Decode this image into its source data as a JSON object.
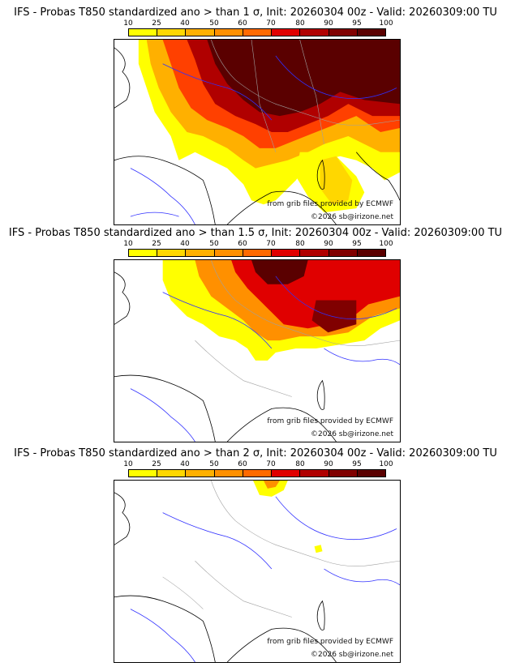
{
  "colors": {
    "c10": "#ffff00",
    "c25": "#ffd700",
    "c40": "#ffb000",
    "c50": "#ff9000",
    "c60": "#ff6a00",
    "c70": "#ff4000",
    "c80": "#e00000",
    "c90": "#b00000",
    "c95": "#800000",
    "c100": "#5a0000",
    "border": "#a0a0a0",
    "river": "#3030ff",
    "coast": "#000000"
  },
  "legend_ticks": [
    "10",
    "25",
    "40",
    "50",
    "60",
    "70",
    "80",
    "90",
    "95",
    "100"
  ],
  "panels": [
    {
      "title": "IFS - Probas T850  standardized ano > than 1 σ, Init: 20260304 00z - Valid: 20260309:00 TU",
      "credit_source": "from grib files provided by ECMWF",
      "credit_copyright": "©2026 sb@irizone.net"
    },
    {
      "title": "IFS - Probas T850  standardized ano > than 1.5 σ, Init: 20260304 00z - Valid: 20260309:00 TU",
      "credit_source": "from grib files provided by ECMWF",
      "credit_copyright": "©2026 sb@irizone.net"
    },
    {
      "title": "IFS - Probas T850  standardized ano > than 2 σ, Init: 20260304 00z - Valid: 20260309:00 TU",
      "credit_source": "from grib files provided by ECMWF",
      "credit_copyright": "©2026 sb@irizone.net"
    }
  ]
}
